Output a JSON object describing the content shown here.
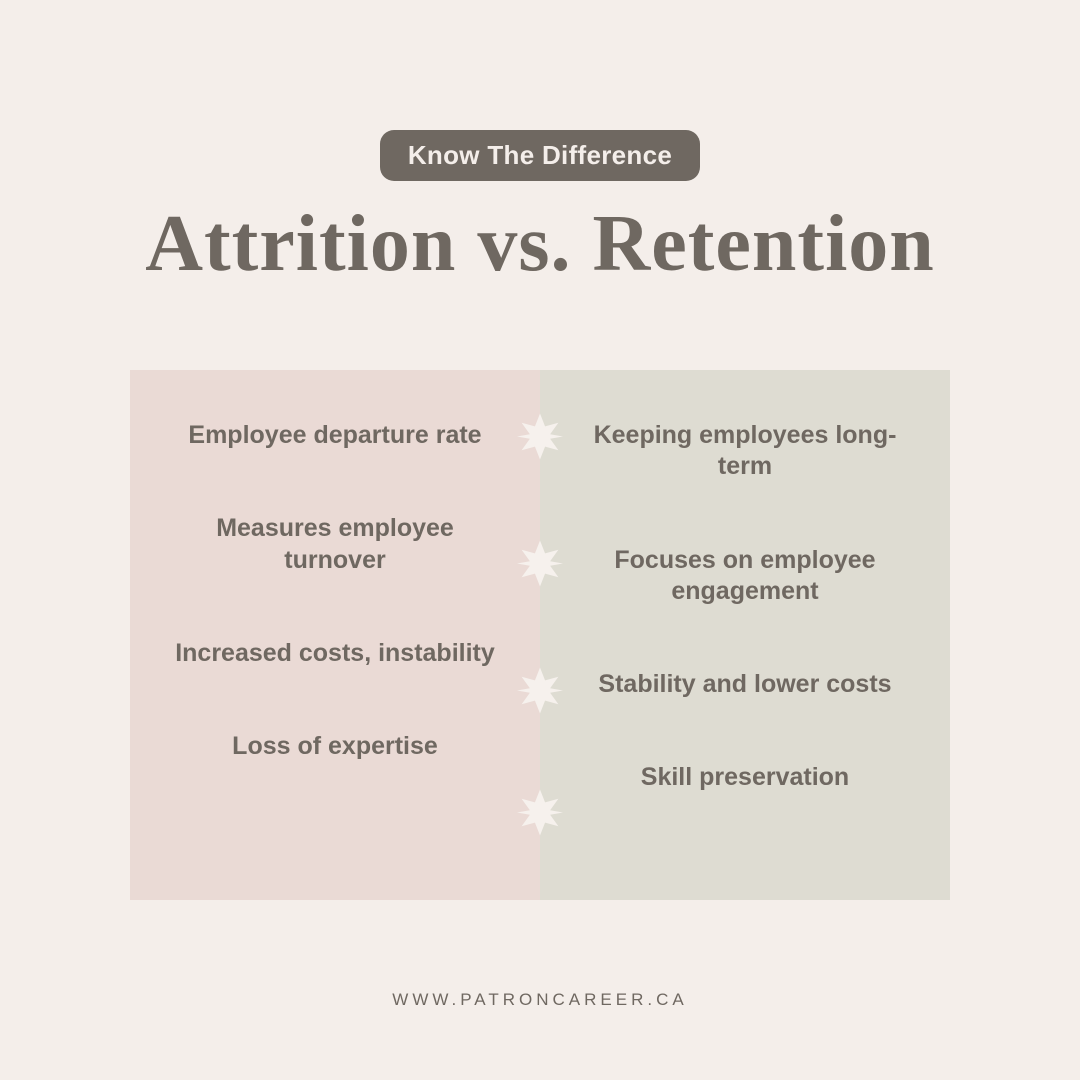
{
  "canvas": {
    "background_color": "#f4eeea"
  },
  "header": {
    "pill_label": "Know The Difference",
    "pill_bg": "#6f6861",
    "pill_text_color": "#f4eeea",
    "pill_fontsize": 26,
    "title": "Attrition vs. Retention",
    "title_color": "#6f6861",
    "title_fontsize": 80
  },
  "compare": {
    "left_bg": "#eadad5",
    "right_bg": "#dedcd2",
    "text_color": "#6f6861",
    "cell_fontsize": 25,
    "left_items": [
      "Employee departure rate",
      "Measures employee turnover",
      "Increased costs, instability",
      "Loss of expertise"
    ],
    "right_items": [
      "Keeping employees long-term",
      "Focuses on employee engagement",
      "Stability and lower costs",
      "Skill preservation"
    ],
    "ornament": {
      "color": "#f6f1ed",
      "size": 46,
      "positions_pct": [
        13,
        37,
        61,
        84
      ]
    }
  },
  "footer": {
    "text": "WWW.PATRONCAREER.CA",
    "color": "#6f6861",
    "fontsize": 17
  }
}
